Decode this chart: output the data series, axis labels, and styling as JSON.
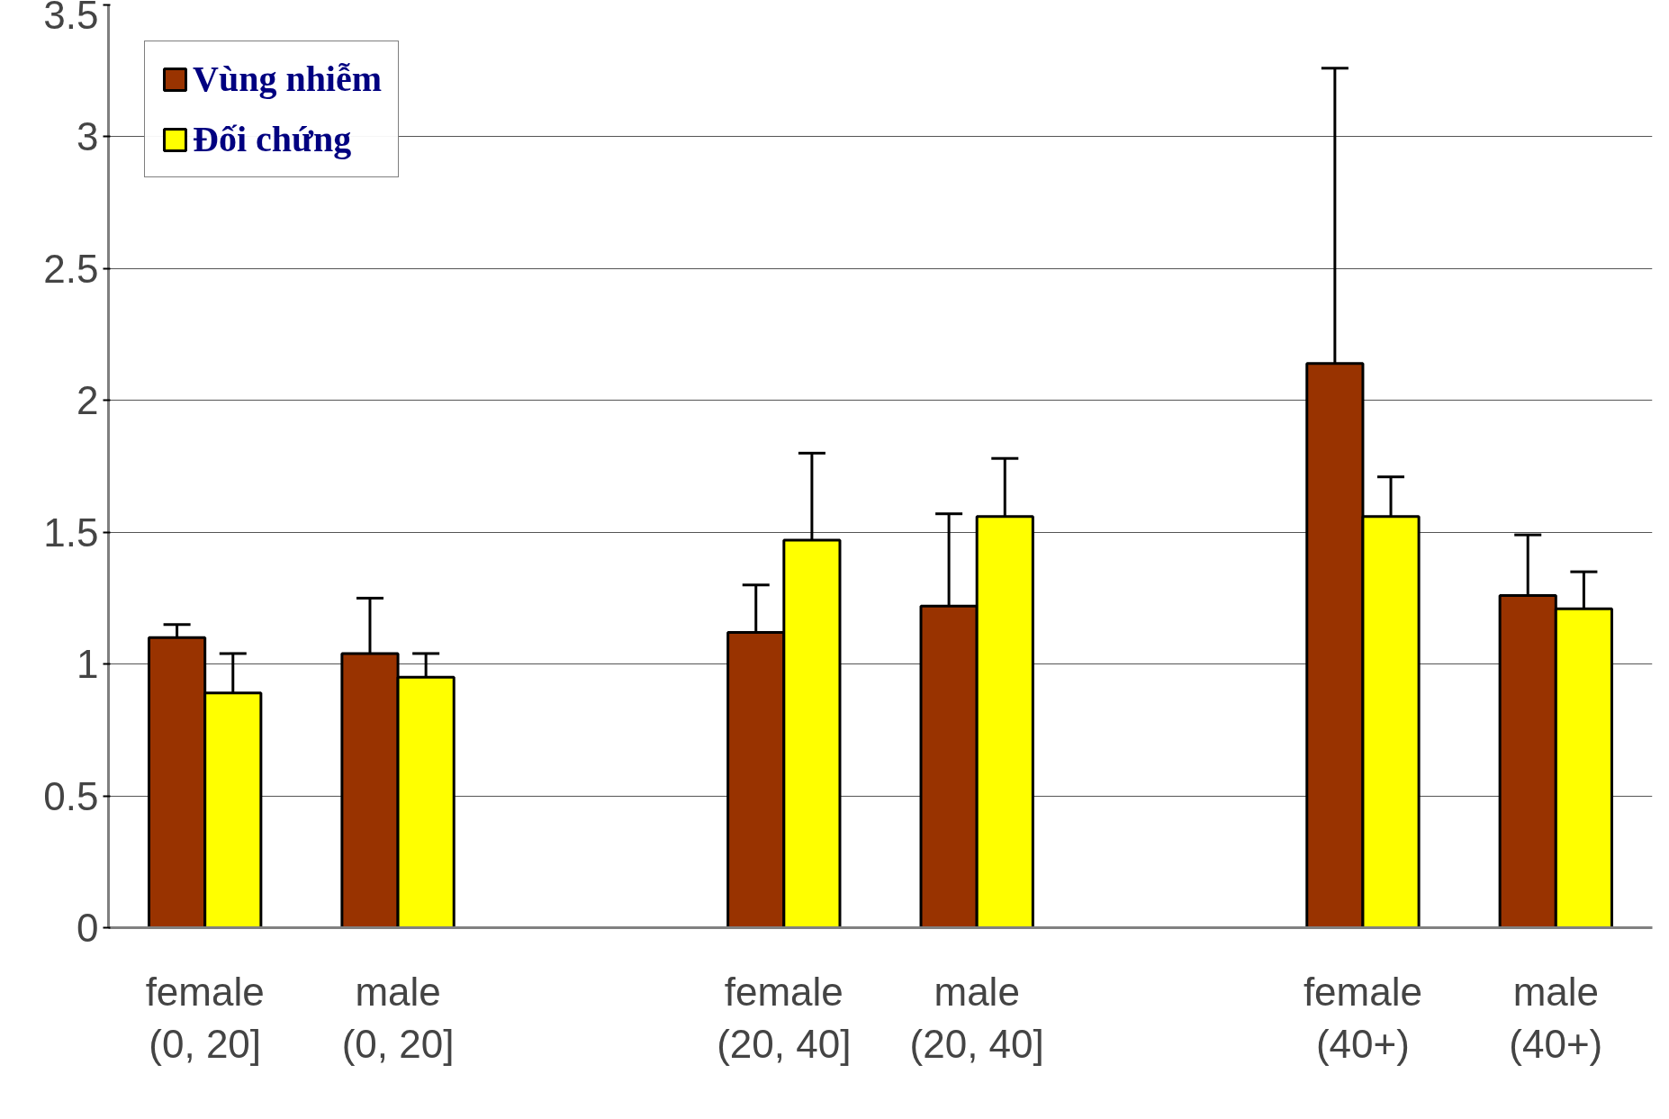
{
  "chart_data": {
    "type": "bar",
    "categories": [
      "female\n(0, 20]",
      "male\n(0, 20]",
      null,
      "female\n(20, 40]",
      "male\n(20, 40]",
      null,
      "female\n(40+)",
      "male\n(40+)"
    ],
    "series": [
      {
        "name": "Vùng nhiễm",
        "color": "#993300",
        "values": [
          1.1,
          1.04,
          null,
          1.12,
          1.22,
          null,
          2.14,
          1.26
        ],
        "errors": [
          [
            1.1,
            1.15
          ],
          [
            1.04,
            1.25
          ],
          null,
          [
            1.12,
            1.3
          ],
          [
            1.22,
            1.57
          ],
          null,
          [
            2.14,
            3.26
          ],
          [
            1.26,
            1.49
          ]
        ]
      },
      {
        "name": "Đối chứng",
        "color": "#ffff00",
        "values": [
          0.89,
          0.95,
          null,
          1.47,
          1.56,
          null,
          1.56,
          1.21
        ],
        "errors": [
          [
            0.89,
            1.04
          ],
          [
            0.95,
            1.04
          ],
          null,
          [
            1.47,
            1.8
          ],
          [
            1.56,
            1.78
          ],
          null,
          [
            1.56,
            1.71
          ],
          [
            1.21,
            1.35
          ]
        ]
      }
    ],
    "ylim": [
      0,
      3.5
    ],
    "yticks": [
      0,
      0.5,
      1,
      1.5,
      2,
      2.5,
      3,
      3.5
    ],
    "grid": "y",
    "legend": "top left"
  }
}
